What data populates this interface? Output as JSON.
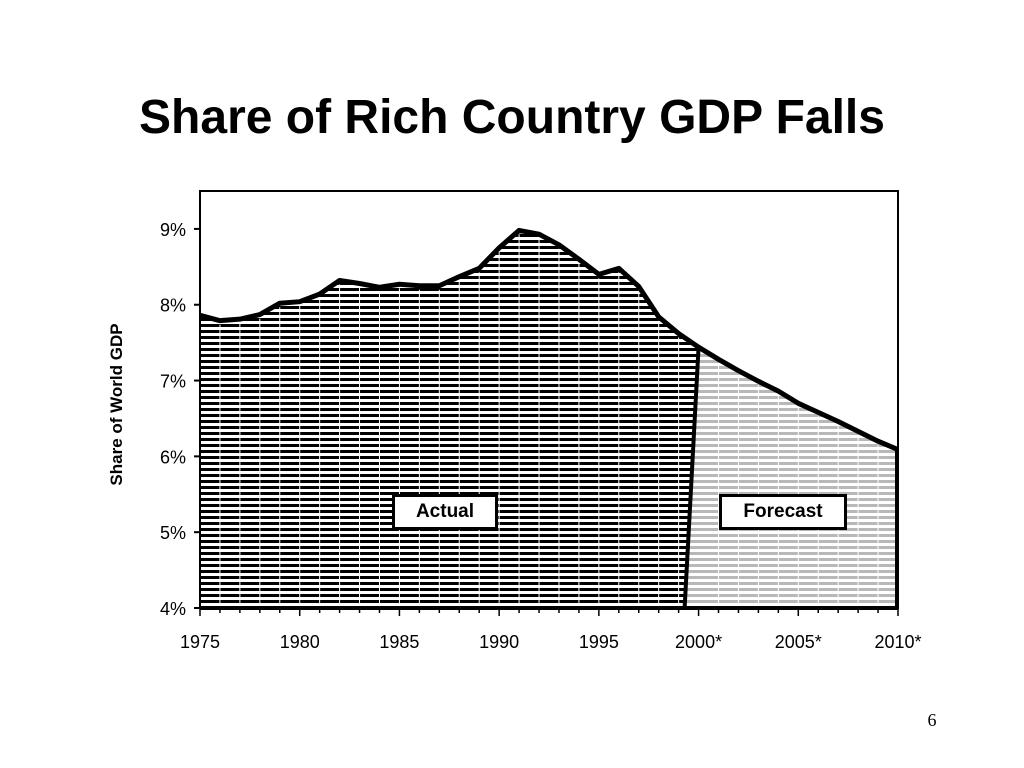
{
  "slide": {
    "title": "Share of Rich Country GDP Falls",
    "page_number": "6"
  },
  "chart_data": {
    "type": "area",
    "title": "Share of Rich Country GDP Falls",
    "xlabel": "",
    "ylabel": "Share of World GDP",
    "ylim": [
      4,
      9.5
    ],
    "yticks": [
      4,
      5,
      6,
      7,
      8,
      9
    ],
    "ytick_labels": [
      "4%",
      "5%",
      "6%",
      "7%",
      "8%",
      "9%"
    ],
    "xtick_labels": [
      "1975",
      "1980",
      "1985",
      "1990",
      "1995",
      "2000*",
      "2005*",
      "2010*"
    ],
    "grid": false,
    "annotations": [
      "Actual",
      "Forecast"
    ],
    "colors": {
      "line": "#000000",
      "actual_fill": "#000000",
      "forecast_fill": "#b8b8b8",
      "background": "#ffffff"
    },
    "series": [
      {
        "label": "Actual",
        "x": [
          1975,
          1976,
          1977,
          1978,
          1979,
          1980,
          1981,
          1982,
          1983,
          1984,
          1985,
          1986,
          1987,
          1988,
          1989,
          1990,
          1991,
          1992,
          1993,
          1994,
          1995,
          1996,
          1997,
          1998,
          1999,
          2000
        ],
        "values": [
          7.86,
          7.79,
          7.81,
          7.87,
          8.02,
          8.04,
          8.14,
          8.32,
          8.28,
          8.23,
          8.27,
          8.25,
          8.25,
          8.37,
          8.48,
          8.75,
          8.98,
          8.93,
          8.79,
          8.6,
          8.4,
          8.48,
          8.24,
          7.84,
          7.62,
          7.44
        ]
      },
      {
        "label": "Forecast",
        "x": [
          2000,
          2001,
          2002,
          2003,
          2004,
          2005,
          2006,
          2007,
          2008,
          2009,
          2010
        ],
        "values": [
          7.44,
          7.28,
          7.13,
          6.99,
          6.86,
          6.7,
          6.58,
          6.46,
          6.33,
          6.2,
          6.09
        ]
      }
    ]
  }
}
